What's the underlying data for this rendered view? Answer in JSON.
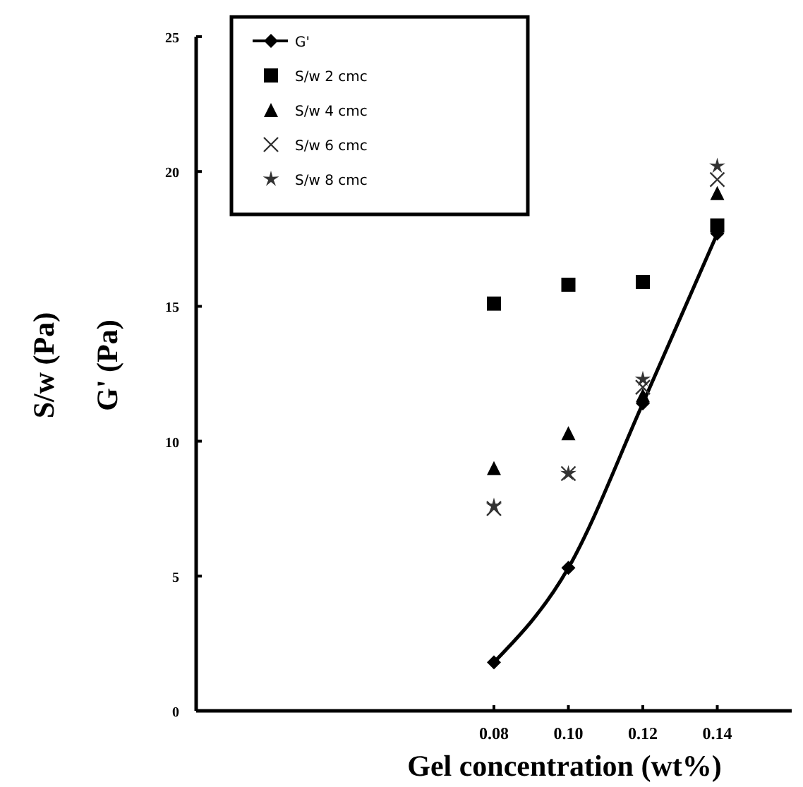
{
  "chart_data": {
    "type": "scatter",
    "xlabel": "Gel concentration (wt%)",
    "ylabel": "S/w (Pa)\nG' (Pa)",
    "x": [
      0.08,
      0.1,
      0.12,
      0.14
    ],
    "xlim": [
      0,
      0.16
    ],
    "xticks": [
      {
        "value": 0.08,
        "label": "0.08"
      },
      {
        "value": 0.1,
        "label": "0.10"
      },
      {
        "value": 0.12,
        "label": "0.12"
      },
      {
        "value": 0.14,
        "label": "0.14"
      }
    ],
    "ylim": [
      0,
      25
    ],
    "yticks": [
      0,
      5,
      10,
      15,
      20,
      25
    ],
    "grid": false,
    "legend": "top left",
    "series": [
      {
        "name": "G'",
        "type": "line",
        "marker": "diamond",
        "line_style": "solid",
        "color": "#000000",
        "values": [
          1.8,
          5.3,
          11.4,
          17.7
        ]
      },
      {
        "name": "S/w 2 cmc",
        "marker": "square",
        "color": "#000000",
        "values": [
          15.1,
          15.8,
          15.9,
          18.0
        ]
      },
      {
        "name": "S/w 4 cmc",
        "marker": "triangle",
        "color": "#000000",
        "values": [
          9.0,
          10.3,
          11.7,
          19.2
        ]
      },
      {
        "name": "S/w 6 cmc",
        "marker": "cross",
        "color": "#333333",
        "values": [
          7.5,
          8.8,
          12.0,
          19.7
        ]
      },
      {
        "name": "S/w 8 cmc",
        "marker": "star",
        "color": "#333333",
        "values": [
          7.6,
          8.8,
          12.3,
          20.2
        ]
      }
    ]
  }
}
